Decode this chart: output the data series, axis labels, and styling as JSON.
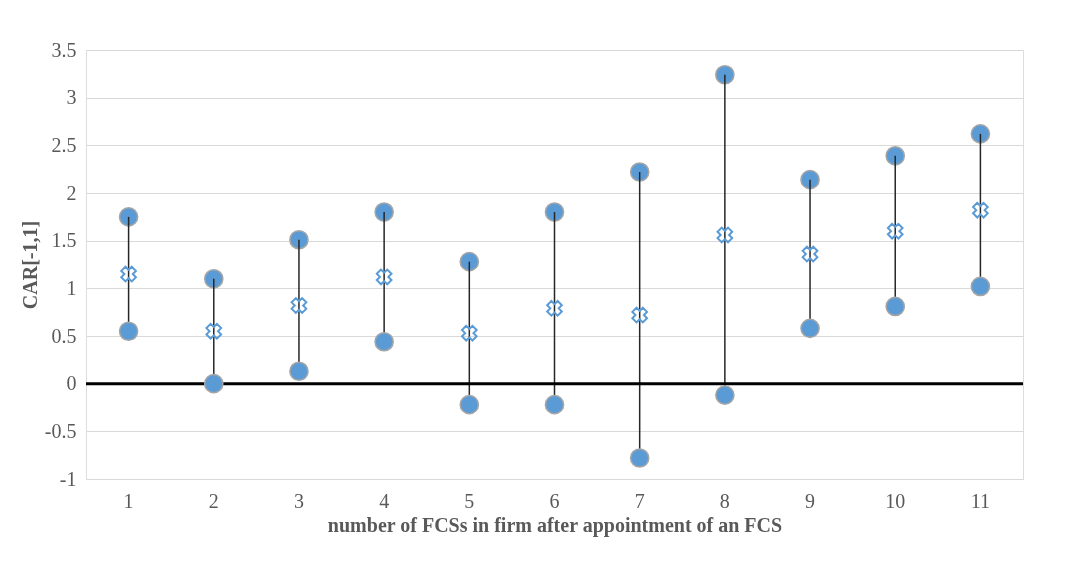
{
  "chart_data": {
    "type": "scatter",
    "xlabel": "number of FCSs in firm after appointment of an FCS",
    "ylabel": "CAR[-1,1]",
    "categories": [
      "1",
      "2",
      "3",
      "4",
      "5",
      "6",
      "7",
      "8",
      "9",
      "10",
      "11"
    ],
    "series": [
      {
        "color": "#5b9bd5",
        "marker": "circle",
        "values": [
          1.75,
          1.1,
          1.51,
          1.8,
          1.28,
          1.8,
          2.22,
          3.24,
          2.14,
          2.39,
          2.62
        ]
      },
      {
        "color": "#5b9bd5",
        "marker": "cross",
        "values": [
          1.15,
          0.55,
          0.82,
          1.12,
          0.53,
          0.79,
          0.72,
          1.56,
          1.36,
          1.6,
          1.82
        ],
        "errors": [
          [
            0.6,
            0.6
          ],
          [
            0.55,
            0.55
          ],
          [
            0.69,
            0.69
          ],
          [
            0.68,
            0.68
          ],
          [
            0.75,
            0.75
          ],
          [
            1.01,
            1.01
          ],
          [
            1.5,
            1.5
          ],
          [
            1.68,
            1.68
          ],
          [
            0.78,
            0.78
          ],
          [
            0.79,
            0.79
          ],
          [
            0.8,
            0.8
          ]
        ]
      },
      {
        "color": "#5b9bd5",
        "marker": "circle",
        "values": [
          0.55,
          0,
          0.13,
          0.44,
          -0.22,
          -0.22,
          -0.78,
          -0.12,
          0.58,
          0.81,
          1.02
        ]
      }
    ],
    "ylim": [
      -1,
      3.5
    ],
    "yticks": [
      -1,
      -0.5,
      0,
      0.5,
      1,
      1.5,
      2,
      2.5,
      3,
      3.5
    ],
    "grid": "y",
    "ref_lines": [
      {
        "axis": "y",
        "value": 0,
        "color": "#000000"
      }
    ]
  }
}
